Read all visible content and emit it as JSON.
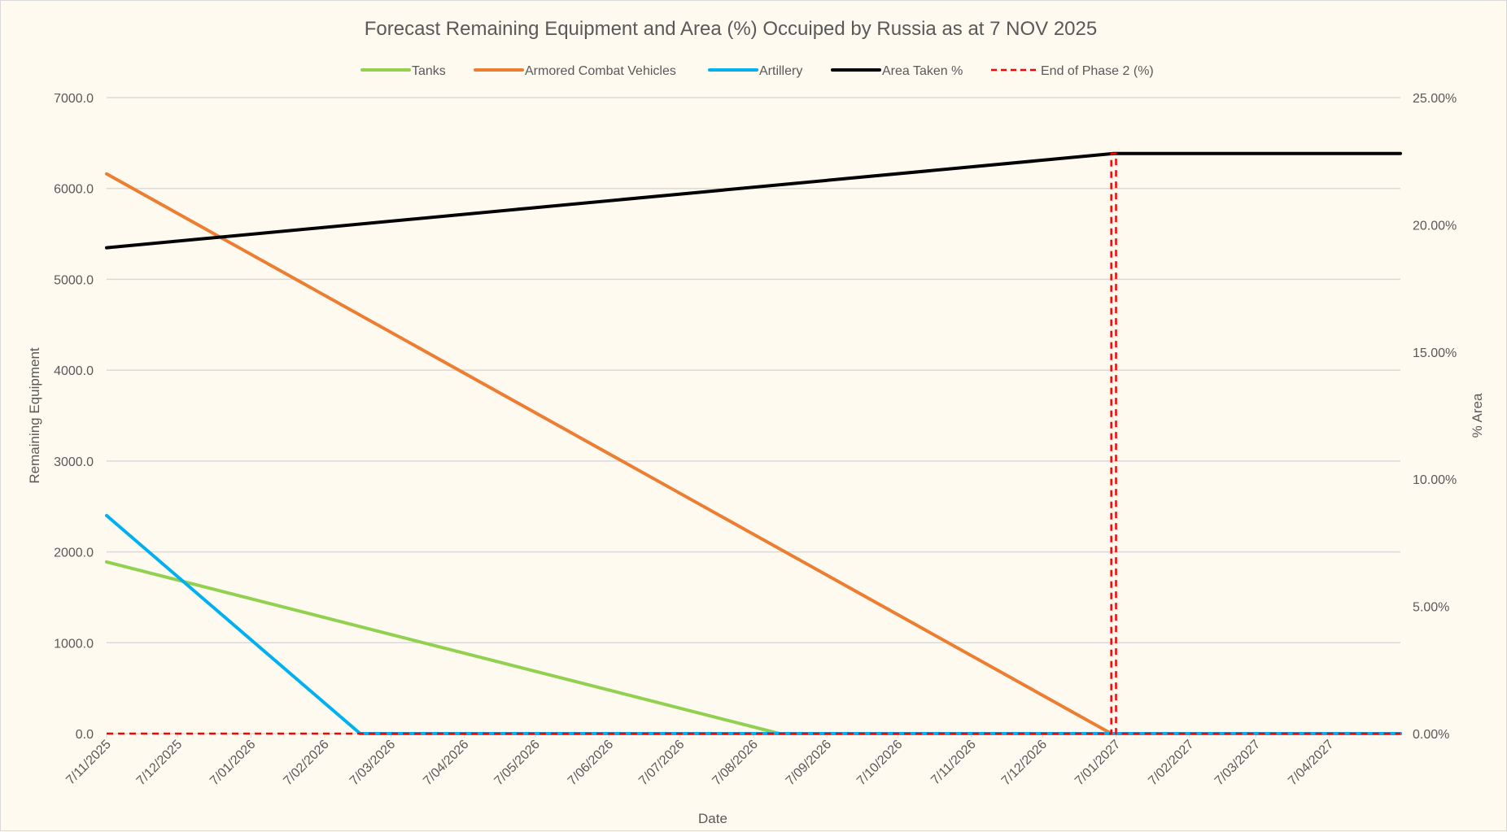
{
  "chart_data": {
    "type": "line",
    "title": "Forecast Remaining Equipment and Area (%) Occuiped by Russia as at 7 NOV 2025",
    "xlabel": "Date",
    "ylabel": "Remaining Equipment",
    "y2label": "% Area",
    "xlim": [
      "2025-11-07",
      "2027-05-07"
    ],
    "ylim": [
      0,
      7000
    ],
    "y2lim": [
      0,
      25
    ],
    "grid": true,
    "legend": "top",
    "x_tick_labels": [
      "7/11/2025",
      "7/12/2025",
      "7/01/2026",
      "7/02/2026",
      "7/03/2026",
      "7/04/2026",
      "7/05/2026",
      "7/06/2026",
      "7/07/2026",
      "7/08/2026",
      "7/09/2026",
      "7/10/2026",
      "7/11/2026",
      "7/12/2026",
      "7/01/2027",
      "7/02/2027",
      "7/03/2027",
      "7/04/2027"
    ],
    "x_tick_dates": [
      "2025-11-07",
      "2025-12-07",
      "2026-01-07",
      "2026-02-07",
      "2026-03-07",
      "2026-04-07",
      "2026-05-07",
      "2026-06-07",
      "2026-07-07",
      "2026-08-07",
      "2026-09-07",
      "2026-10-07",
      "2026-11-07",
      "2026-12-07",
      "2027-01-07",
      "2027-02-07",
      "2027-03-07",
      "2027-04-07"
    ],
    "y_tick_labels": [
      "0.0",
      "1000.0",
      "2000.0",
      "3000.0",
      "4000.0",
      "5000.0",
      "6000.0",
      "7000.0"
    ],
    "y2_tick_labels": [
      "0.00%",
      "5.00%",
      "10.00%",
      "15.00%",
      "20.00%",
      "25.00%"
    ],
    "series": [
      {
        "name": "Tanks",
        "axis": "left",
        "color": "#92d050",
        "dash": false,
        "points": [
          [
            "2025-11-07",
            1890
          ],
          [
            "2026-08-18",
            0
          ],
          [
            "2027-05-07",
            0
          ]
        ]
      },
      {
        "name": "Armored Combat Vehicles",
        "axis": "left",
        "color": "#ed7d31",
        "dash": false,
        "points": [
          [
            "2025-11-07",
            6160
          ],
          [
            "2027-01-05",
            0
          ],
          [
            "2027-05-07",
            0
          ]
        ]
      },
      {
        "name": "Artillery",
        "axis": "left",
        "color": "#00b0f0",
        "dash": false,
        "points": [
          [
            "2025-11-07",
            2400
          ],
          [
            "2026-02-22",
            0
          ],
          [
            "2027-05-07",
            0
          ]
        ]
      },
      {
        "name": "Area Taken %",
        "axis": "right",
        "color": "#000000",
        "dash": false,
        "points": [
          [
            "2025-11-07",
            19.1
          ],
          [
            "2027-01-06",
            22.8
          ],
          [
            "2027-05-07",
            22.8
          ]
        ]
      },
      {
        "name": "End of Phase 2 (%)",
        "axis": "right",
        "color": "#ff0000",
        "dash": true,
        "points": [
          [
            "2025-11-07",
            0
          ],
          [
            "2027-01-05",
            0
          ],
          [
            "2027-01-05",
            22.8
          ],
          [
            "2027-01-07",
            22.8
          ],
          [
            "2027-01-07",
            0
          ],
          [
            "2027-05-07",
            0
          ]
        ]
      }
    ]
  }
}
